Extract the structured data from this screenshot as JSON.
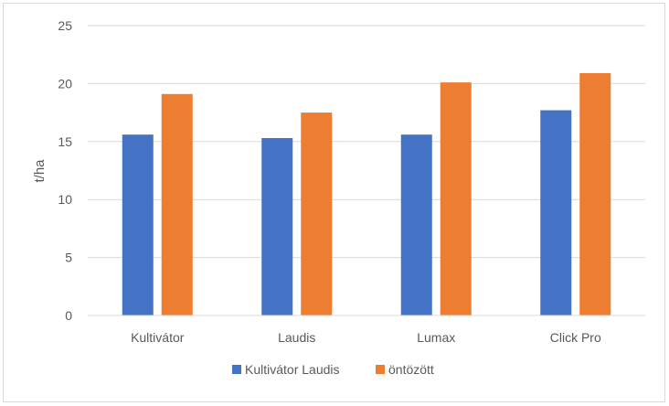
{
  "chart_data": {
    "type": "bar",
    "title": "",
    "xlabel": "",
    "ylabel": "t/ha",
    "categories": [
      "Kultivátor",
      "Laudis",
      "Lumax",
      "Click Pro"
    ],
    "series": [
      {
        "name": "Kultivátor Laudis",
        "color": "#4472c4",
        "values": [
          15.6,
          15.3,
          15.6,
          17.7
        ]
      },
      {
        "name": "öntözött",
        "color": "#ed7d31",
        "values": [
          19.1,
          17.5,
          20.1,
          20.9
        ]
      }
    ],
    "ylim": [
      0,
      25
    ],
    "yticks": [
      0,
      5,
      10,
      15,
      20,
      25
    ],
    "grid": true,
    "legend_position": "bottom"
  }
}
